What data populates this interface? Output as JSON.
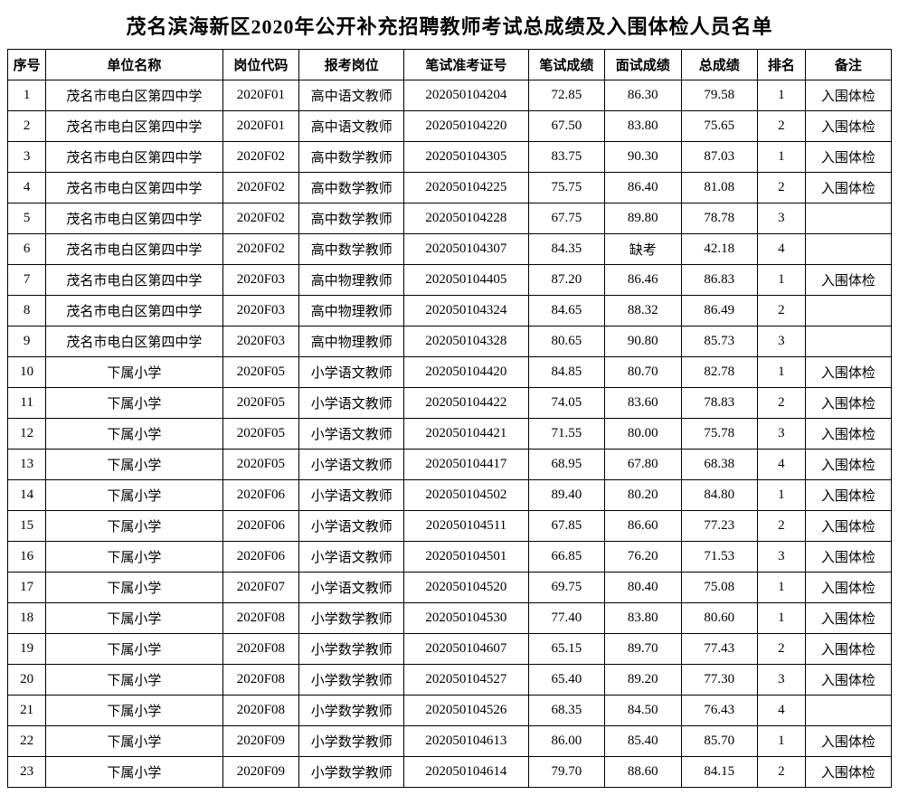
{
  "title": "茂名滨海新区2020年公开补充招聘教师考试总成绩及入围体检人员名单",
  "columns": [
    "序号",
    "单位名称",
    "岗位代码",
    "报考岗位",
    "笔试准考证号",
    "笔试成绩",
    "面试成绩",
    "总成绩",
    "排名",
    "备注"
  ],
  "rows": [
    [
      "1",
      "茂名市电白区第四中学",
      "2020F01",
      "高中语文教师",
      "202050104204",
      "72.85",
      "86.30",
      "79.58",
      "1",
      "入围体检"
    ],
    [
      "2",
      "茂名市电白区第四中学",
      "2020F01",
      "高中语文教师",
      "202050104220",
      "67.50",
      "83.80",
      "75.65",
      "2",
      "入围体检"
    ],
    [
      "3",
      "茂名市电白区第四中学",
      "2020F02",
      "高中数学教师",
      "202050104305",
      "83.75",
      "90.30",
      "87.03",
      "1",
      "入围体检"
    ],
    [
      "4",
      "茂名市电白区第四中学",
      "2020F02",
      "高中数学教师",
      "202050104225",
      "75.75",
      "86.40",
      "81.08",
      "2",
      "入围体检"
    ],
    [
      "5",
      "茂名市电白区第四中学",
      "2020F02",
      "高中数学教师",
      "202050104228",
      "67.75",
      "89.80",
      "78.78",
      "3",
      ""
    ],
    [
      "6",
      "茂名市电白区第四中学",
      "2020F02",
      "高中数学教师",
      "202050104307",
      "84.35",
      "缺考",
      "42.18",
      "4",
      ""
    ],
    [
      "7",
      "茂名市电白区第四中学",
      "2020F03",
      "高中物理教师",
      "202050104405",
      "87.20",
      "86.46",
      "86.83",
      "1",
      "入围体检"
    ],
    [
      "8",
      "茂名市电白区第四中学",
      "2020F03",
      "高中物理教师",
      "202050104324",
      "84.65",
      "88.32",
      "86.49",
      "2",
      ""
    ],
    [
      "9",
      "茂名市电白区第四中学",
      "2020F03",
      "高中物理教师",
      "202050104328",
      "80.65",
      "90.80",
      "85.73",
      "3",
      ""
    ],
    [
      "10",
      "下属小学",
      "2020F05",
      "小学语文教师",
      "202050104420",
      "84.85",
      "80.70",
      "82.78",
      "1",
      "入围体检"
    ],
    [
      "11",
      "下属小学",
      "2020F05",
      "小学语文教师",
      "202050104422",
      "74.05",
      "83.60",
      "78.83",
      "2",
      "入围体检"
    ],
    [
      "12",
      "下属小学",
      "2020F05",
      "小学语文教师",
      "202050104421",
      "71.55",
      "80.00",
      "75.78",
      "3",
      "入围体检"
    ],
    [
      "13",
      "下属小学",
      "2020F05",
      "小学语文教师",
      "202050104417",
      "68.95",
      "67.80",
      "68.38",
      "4",
      "入围体检"
    ],
    [
      "14",
      "下属小学",
      "2020F06",
      "小学语文教师",
      "202050104502",
      "89.40",
      "80.20",
      "84.80",
      "1",
      "入围体检"
    ],
    [
      "15",
      "下属小学",
      "2020F06",
      "小学语文教师",
      "202050104511",
      "67.85",
      "86.60",
      "77.23",
      "2",
      "入围体检"
    ],
    [
      "16",
      "下属小学",
      "2020F06",
      "小学语文教师",
      "202050104501",
      "66.85",
      "76.20",
      "71.53",
      "3",
      "入围体检"
    ],
    [
      "17",
      "下属小学",
      "2020F07",
      "小学语文教师",
      "202050104520",
      "69.75",
      "80.40",
      "75.08",
      "1",
      "入围体检"
    ],
    [
      "18",
      "下属小学",
      "2020F08",
      "小学数学教师",
      "202050104530",
      "77.40",
      "83.80",
      "80.60",
      "1",
      "入围体检"
    ],
    [
      "19",
      "下属小学",
      "2020F08",
      "小学数学教师",
      "202050104607",
      "65.15",
      "89.70",
      "77.43",
      "2",
      "入围体检"
    ],
    [
      "20",
      "下属小学",
      "2020F08",
      "小学数学教师",
      "202050104527",
      "65.40",
      "89.20",
      "77.30",
      "3",
      "入围体检"
    ],
    [
      "21",
      "下属小学",
      "2020F08",
      "小学数学教师",
      "202050104526",
      "68.35",
      "84.50",
      "76.43",
      "4",
      ""
    ],
    [
      "22",
      "下属小学",
      "2020F09",
      "小学数学教师",
      "202050104613",
      "86.00",
      "85.40",
      "85.70",
      "1",
      "入围体检"
    ],
    [
      "23",
      "下属小学",
      "2020F09",
      "小学数学教师",
      "202050104614",
      "79.70",
      "88.60",
      "84.15",
      "2",
      "入围体检"
    ]
  ]
}
